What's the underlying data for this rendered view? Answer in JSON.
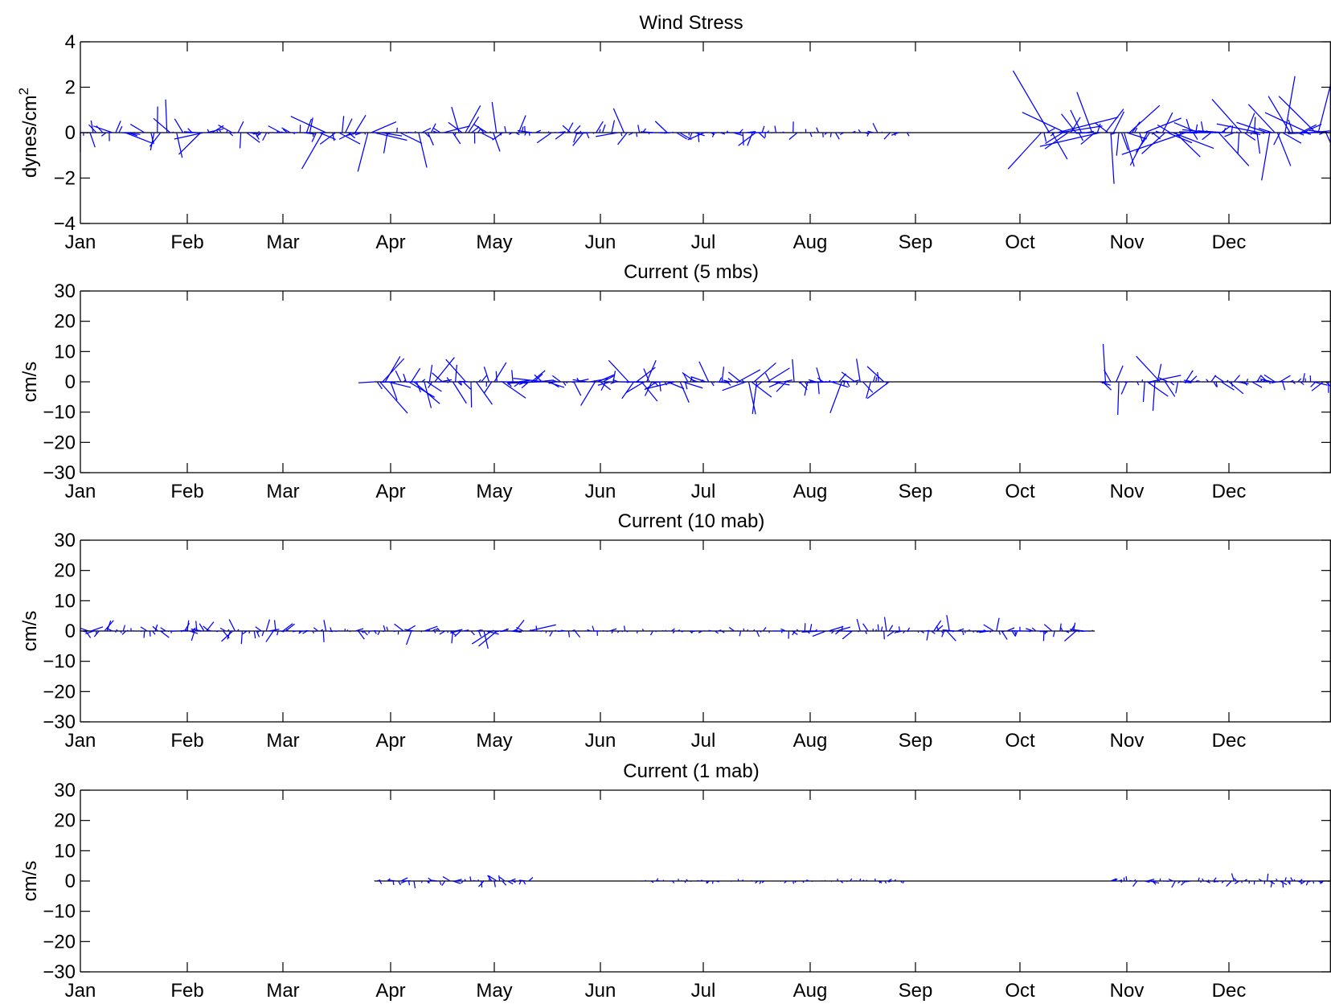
{
  "colors": {
    "stick": "#0000ff",
    "axis": "#000000",
    "zero_line": "#000000",
    "background": "#ffffff"
  },
  "chart_data": [
    {
      "type": "stick",
      "title": "Wind Stress",
      "ylabel": "dynes/cm",
      "ylabel_superscript": "2",
      "ylim": [
        -4,
        4
      ],
      "yticks": [
        4,
        2,
        0,
        -2,
        -4
      ],
      "ytick_labels": [
        "4",
        "2",
        "0",
        "−2",
        "−4"
      ],
      "xlim": [
        1,
        13
      ],
      "xticks": [
        1,
        2,
        3,
        4,
        5,
        6,
        7,
        8,
        9,
        10,
        11,
        12
      ],
      "xtick_labels": [
        "Jan",
        "Feb",
        "Mar",
        "Apr",
        "May",
        "Jun",
        "Jul",
        "Aug",
        "Sep",
        "Oct",
        "Nov",
        "Dec"
      ],
      "zero_line_range": [
        1,
        13
      ],
      "segments": [
        {
          "t0": 1.0,
          "t1": 3.25,
          "amp": 1.6,
          "seed": 1,
          "step": 0.03
        },
        {
          "t0": 3.25,
          "t1": 5.3,
          "amp": 2.0,
          "seed": 2,
          "step": 0.03
        },
        {
          "t0": 5.3,
          "t1": 7.6,
          "amp": 1.2,
          "seed": 3,
          "step": 0.03
        },
        {
          "t0": 7.6,
          "t1": 8.95,
          "amp": 0.5,
          "seed": 4,
          "step": 0.04
        },
        {
          "t0": 10.2,
          "t1": 13.0,
          "amp": 3.2,
          "seed": 5,
          "step": 0.025
        }
      ]
    },
    {
      "type": "stick",
      "title": "Current (5 mbs)",
      "ylabel": "cm/s",
      "ylim": [
        -30,
        30
      ],
      "yticks": [
        30,
        20,
        10,
        0,
        -10,
        -20,
        -30
      ],
      "ytick_labels": [
        "30",
        "20",
        "10",
        "0",
        "−10",
        "−20",
        "−30"
      ],
      "xlim": [
        1,
        13
      ],
      "xticks": [
        1,
        2,
        3,
        4,
        5,
        6,
        7,
        8,
        9,
        10,
        11,
        12
      ],
      "xtick_labels": [
        "Jan",
        "Feb",
        "Mar",
        "Apr",
        "May",
        "Jun",
        "Jul",
        "Aug",
        "Sep",
        "Oct",
        "Nov",
        "Dec"
      ],
      "zero_line_range": [
        3.85,
        13
      ],
      "segments": [
        {
          "t0": 3.85,
          "t1": 5.1,
          "amp": 14,
          "seed": 11,
          "step": 0.025
        },
        {
          "t0": 5.1,
          "t1": 7.2,
          "amp": 11,
          "seed": 12,
          "step": 0.025
        },
        {
          "t0": 7.2,
          "t1": 8.8,
          "amp": 13,
          "seed": 13,
          "step": 0.025
        },
        {
          "t0": 10.75,
          "t1": 11.4,
          "amp": 16,
          "seed": 14,
          "step": 0.025
        },
        {
          "t0": 11.4,
          "t1": 13.0,
          "amp": 7,
          "seed": 15,
          "step": 0.025
        }
      ]
    },
    {
      "type": "stick",
      "title": "Current (10 mab)",
      "ylabel": "cm/s",
      "ylim": [
        -30,
        30
      ],
      "yticks": [
        30,
        20,
        10,
        0,
        -10,
        -20,
        -30
      ],
      "ytick_labels": [
        "30",
        "20",
        "10",
        "0",
        "−10",
        "−20",
        "−30"
      ],
      "xlim": [
        1,
        13
      ],
      "xticks": [
        1,
        2,
        3,
        4,
        5,
        6,
        7,
        8,
        9,
        10,
        11,
        12
      ],
      "xtick_labels": [
        "Jan",
        "Feb",
        "Mar",
        "Apr",
        "May",
        "Jun",
        "Jul",
        "Aug",
        "Sep",
        "Oct",
        "Nov",
        "Dec"
      ],
      "zero_line_range": [
        1,
        10.7
      ],
      "segments": [
        {
          "t0": 1.0,
          "t1": 4.9,
          "amp": 5.5,
          "seed": 21,
          "step": 0.025
        },
        {
          "t0": 4.9,
          "t1": 5.4,
          "amp": 12,
          "seed": 22,
          "step": 0.025
        },
        {
          "t0": 5.4,
          "t1": 7.9,
          "amp": 3,
          "seed": 23,
          "step": 0.03
        },
        {
          "t0": 7.9,
          "t1": 8.3,
          "amp": 7,
          "seed": 24,
          "step": 0.025
        },
        {
          "t0": 8.3,
          "t1": 10.7,
          "amp": 6,
          "seed": 25,
          "step": 0.025
        }
      ]
    },
    {
      "type": "stick",
      "title": "Current (1 mab)",
      "ylabel": "cm/s",
      "ylim": [
        -30,
        30
      ],
      "yticks": [
        30,
        20,
        10,
        0,
        -10,
        -20,
        -30
      ],
      "ytick_labels": [
        "30",
        "20",
        "10",
        "0",
        "−10",
        "−20",
        "−30"
      ],
      "xlim": [
        1,
        13
      ],
      "xticks": [
        1,
        2,
        3,
        4,
        5,
        6,
        7,
        8,
        9,
        10,
        11,
        12
      ],
      "xtick_labels": [
        "Jan",
        "Feb",
        "Mar",
        "Apr",
        "May",
        "Jun",
        "Jul",
        "Aug",
        "Sep",
        "Oct",
        "Nov",
        "Dec"
      ],
      "zero_line_range": [
        3.85,
        13
      ],
      "segments": [
        {
          "t0": 3.85,
          "t1": 5.4,
          "amp": 3.5,
          "seed": 31,
          "step": 0.025
        },
        {
          "t0": 6.4,
          "t1": 8.9,
          "amp": 1.5,
          "seed": 32,
          "step": 0.03
        },
        {
          "t0": 10.85,
          "t1": 13.0,
          "amp": 3.5,
          "seed": 33,
          "step": 0.025
        }
      ]
    }
  ]
}
